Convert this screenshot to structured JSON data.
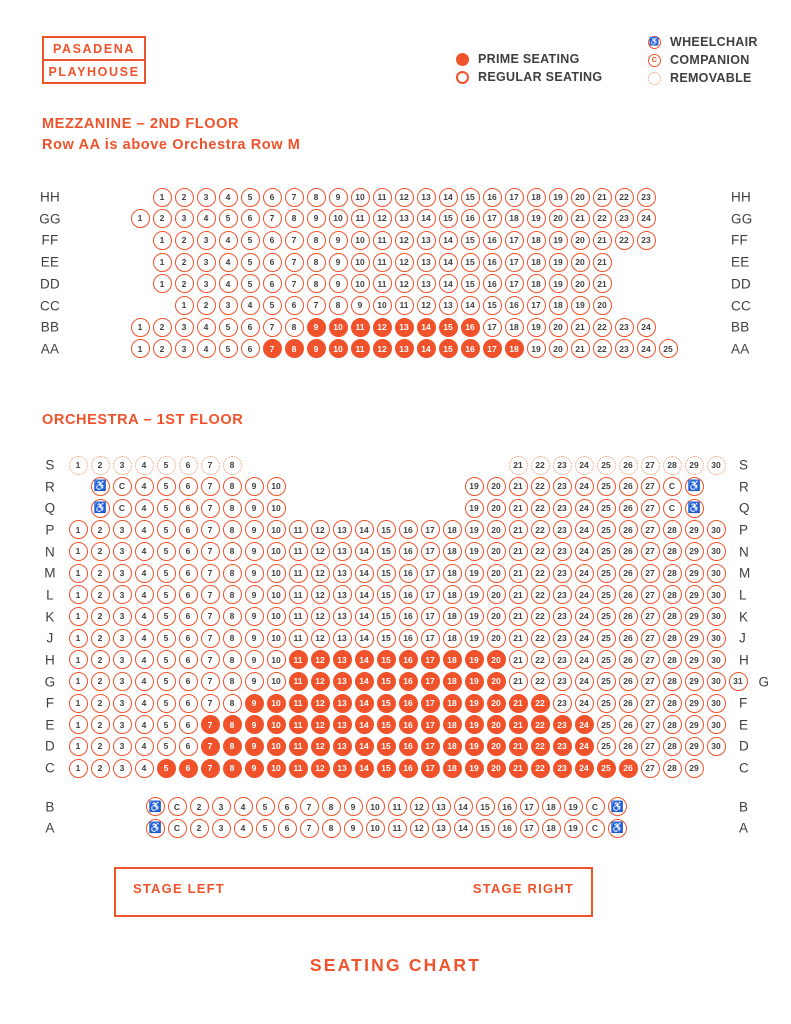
{
  "brand": {
    "line1": "PASADENA",
    "line2": "PLAYHOUSE"
  },
  "colors": {
    "accent": "#F0522B",
    "seat_number": "#3F3F3F"
  },
  "legend": {
    "prime_label": "PRIME SEATING",
    "regular_label": "REGULAR SEATING",
    "wheelchair_label": "WHEELCHAIR",
    "companion_label": "COMPANION",
    "removable_label": "REMOVABLE"
  },
  "mezzanine": {
    "title": "MEZZANINE – 2ND FLOOR",
    "subtitle": "Row AA is above Orchestra Row M",
    "rows": [
      {
        "label": "HH",
        "groups": [
          {
            "col": 2,
            "tokens": "1-23"
          }
        ]
      },
      {
        "label": "GG",
        "groups": [
          {
            "col": 1,
            "tokens": "1-24"
          }
        ]
      },
      {
        "label": "FF",
        "groups": [
          {
            "col": 2,
            "tokens": "1-23"
          }
        ]
      },
      {
        "label": "EE",
        "groups": [
          {
            "col": 2,
            "tokens": "1-21"
          }
        ]
      },
      {
        "label": "DD",
        "groups": [
          {
            "col": 2,
            "tokens": "1-21"
          }
        ]
      },
      {
        "label": "CC",
        "groups": [
          {
            "col": 3,
            "tokens": "1-20"
          }
        ]
      },
      {
        "label": "BB",
        "prime": "9-16",
        "groups": [
          {
            "col": 1,
            "tokens": "1-24"
          }
        ]
      },
      {
        "label": "AA",
        "prime": "7-18",
        "groups": [
          {
            "col": 1,
            "tokens": "1-25"
          }
        ]
      }
    ]
  },
  "orchestra": {
    "title": "ORCHESTRA – 1ST FLOOR",
    "rows": [
      {
        "label": "S",
        "removable": true,
        "groups": [
          {
            "col": 1,
            "tokens": "1-8"
          },
          {
            "col": 21,
            "tokens": "21-30"
          }
        ]
      },
      {
        "label": "R",
        "groups": [
          {
            "col": 2,
            "tokens": "W C 4-10"
          },
          {
            "col": 19,
            "tokens": "19-27 C W"
          }
        ]
      },
      {
        "label": "Q",
        "groups": [
          {
            "col": 2,
            "tokens": "W C 4-10"
          },
          {
            "col": 19,
            "tokens": "19-27 C W"
          }
        ]
      },
      {
        "label": "P",
        "groups": [
          {
            "col": 1,
            "tokens": "1-30"
          }
        ]
      },
      {
        "label": "N",
        "groups": [
          {
            "col": 1,
            "tokens": "1-30"
          }
        ]
      },
      {
        "label": "M",
        "groups": [
          {
            "col": 1,
            "tokens": "1-30"
          }
        ]
      },
      {
        "label": "L",
        "groups": [
          {
            "col": 1,
            "tokens": "1-30"
          }
        ]
      },
      {
        "label": "K",
        "groups": [
          {
            "col": 1,
            "tokens": "1-30"
          }
        ]
      },
      {
        "label": "J",
        "groups": [
          {
            "col": 1,
            "tokens": "1-30"
          }
        ]
      },
      {
        "label": "H",
        "prime": "11-20",
        "groups": [
          {
            "col": 1,
            "tokens": "1-30"
          }
        ]
      },
      {
        "label": "G",
        "prime": "11-20",
        "groups": [
          {
            "col": 1,
            "tokens": "1-31"
          }
        ]
      },
      {
        "label": "F",
        "prime": "9-22",
        "groups": [
          {
            "col": 1,
            "tokens": "1-30"
          }
        ]
      },
      {
        "label": "E",
        "prime": "7-24",
        "groups": [
          {
            "col": 1,
            "tokens": "1-30"
          }
        ]
      },
      {
        "label": "D",
        "prime": "7-24",
        "groups": [
          {
            "col": 1,
            "tokens": "1-30"
          }
        ]
      },
      {
        "label": "C",
        "prime": "5-26",
        "groups": [
          {
            "col": 1,
            "tokens": "1-29"
          }
        ]
      },
      {
        "label": "B",
        "gap_before": true,
        "groups": [
          {
            "col": 4.5,
            "tokens": "W C 2-19 C W"
          }
        ]
      },
      {
        "label": "A",
        "groups": [
          {
            "col": 4.5,
            "tokens": "W C 2-19 C W"
          }
        ]
      }
    ]
  },
  "stage": {
    "left_label": "STAGE LEFT",
    "right_label": "STAGE RIGHT"
  },
  "footer": {
    "title": "SEATING CHART"
  },
  "icons": {
    "wheelchair": "♿",
    "companion": "C"
  }
}
